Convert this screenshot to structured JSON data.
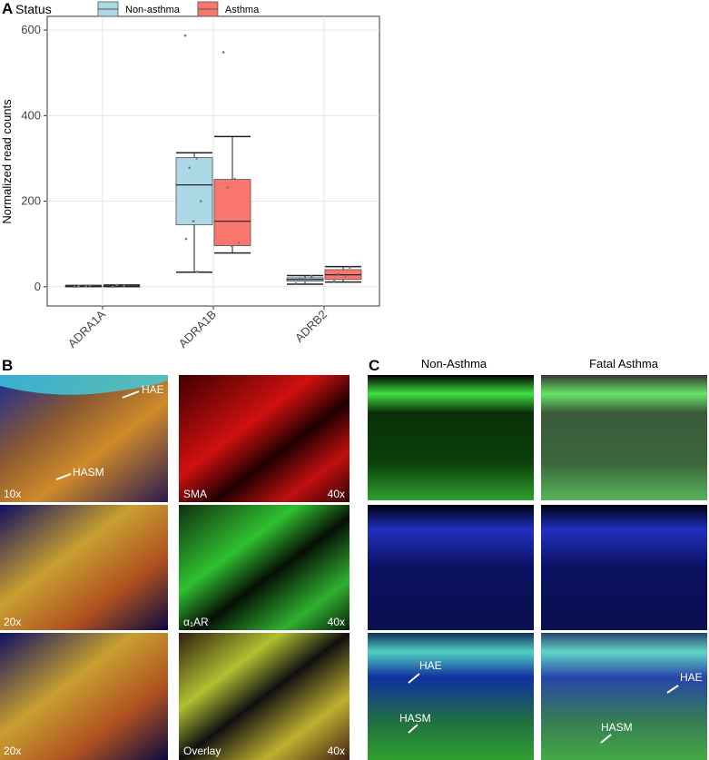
{
  "chart_data": {
    "type": "boxplot",
    "ylabel": "Normalized read counts",
    "legend_title": "Status",
    "categories": [
      "ADRA1A",
      "ADRA1B",
      "ADRB2"
    ],
    "ylim": [
      -45,
      632
    ],
    "yticks": [
      0,
      200,
      400,
      600
    ],
    "grid": true,
    "series": [
      {
        "name": "Non-asthma",
        "color": "#add8e6",
        "boxes": [
          {
            "whislo": 0,
            "q1": 0,
            "med": 1,
            "q3": 2,
            "whishi": 3,
            "points": [
              0,
              1,
              2,
              3
            ]
          },
          {
            "whislo": 34,
            "q1": 145,
            "med": 238,
            "q3": 302,
            "whishi": 313,
            "points": [
              587,
              300,
              278,
              200,
              153,
              112,
              35
            ]
          },
          {
            "whislo": 6,
            "q1": 13,
            "med": 17,
            "q3": 21,
            "whishi": 26,
            "points": [
              8,
              15,
              20,
              24
            ]
          }
        ]
      },
      {
        "name": "Asthma",
        "color": "#f8766d",
        "boxes": [
          {
            "whislo": 0,
            "q1": 0,
            "med": 1,
            "q3": 2,
            "whishi": 4,
            "points": [
              0,
              2,
              4
            ]
          },
          {
            "whislo": 79,
            "q1": 96,
            "med": 153,
            "q3": 251,
            "whishi": 351,
            "points": [
              548,
              252,
              232,
              103,
              95
            ]
          },
          {
            "whislo": 11,
            "q1": 17,
            "med": 28,
            "q3": 40,
            "whishi": 47,
            "points": [
              13,
              25,
              30,
              45
            ]
          }
        ]
      }
    ]
  },
  "figure": {
    "panel_labels": [
      "A",
      "B",
      "C"
    ],
    "panel_b": {
      "hae": "HAE",
      "hasm": "HASM",
      "magnifications": [
        "10x",
        "20x",
        "20x",
        "40x",
        "40x",
        "40x"
      ],
      "stains": [
        "SMA",
        "α₁AR",
        "Overlay"
      ]
    },
    "panel_c": {
      "columns": [
        "Non-Asthma",
        "Fatal Asthma"
      ],
      "hae": "HAE",
      "hasm": "HASM"
    }
  }
}
